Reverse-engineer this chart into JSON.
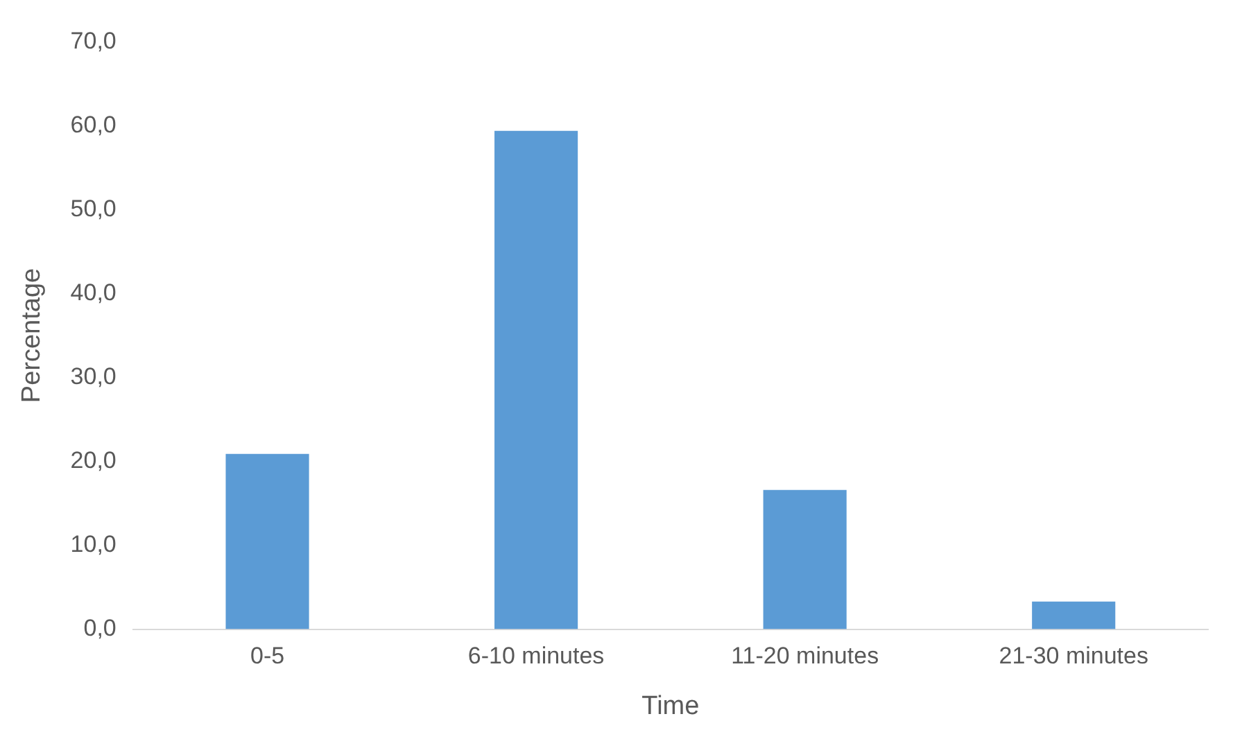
{
  "chart_data": {
    "type": "bar",
    "xlabel": "Time",
    "ylabel": "Percentage",
    "categories": [
      "0-5",
      "6-10 minutes",
      "11-20 minutes",
      "21-30 minutes"
    ],
    "values": [
      20.9,
      59.4,
      16.6,
      3.3
    ],
    "color": "#5b9bd5",
    "ylim": [
      0,
      70
    ],
    "yticks": [
      {
        "value": 0,
        "label": "0,0"
      },
      {
        "value": 10,
        "label": "10,0"
      },
      {
        "value": 20,
        "label": "20,0"
      },
      {
        "value": 30,
        "label": "30,0"
      },
      {
        "value": 40,
        "label": "40,0"
      },
      {
        "value": 50,
        "label": "50,0"
      },
      {
        "value": 60,
        "label": "60,0"
      },
      {
        "value": 70,
        "label": "70,0"
      }
    ],
    "grid": false,
    "legend": false
  }
}
